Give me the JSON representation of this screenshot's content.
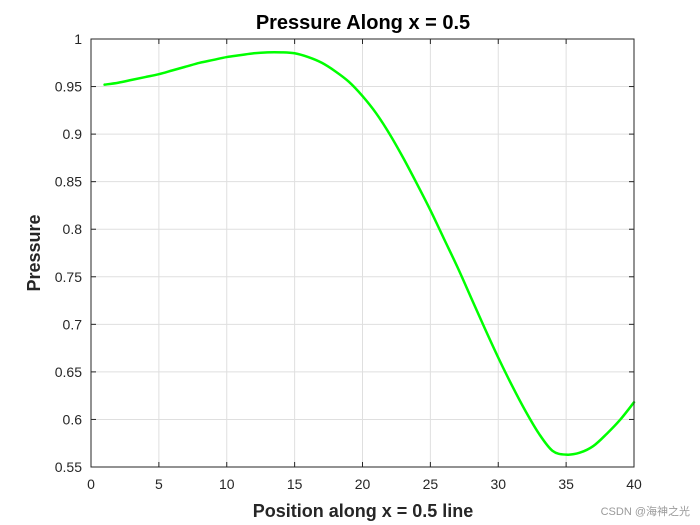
{
  "chart_data": {
    "type": "line",
    "title": "Pressure Along x = 0.5",
    "xlabel": "Position along x = 0.5 line",
    "ylabel": "Pressure",
    "xlim": [
      0,
      40
    ],
    "ylim": [
      0.55,
      1
    ],
    "xticks": [
      0,
      5,
      10,
      15,
      20,
      25,
      30,
      35,
      40
    ],
    "xtick_labels": [
      "0",
      "5",
      "10",
      "15",
      "20",
      "25",
      "30",
      "35",
      "40"
    ],
    "yticks": [
      0.55,
      0.6,
      0.65,
      0.7,
      0.75,
      0.8,
      0.85,
      0.9,
      0.95,
      1
    ],
    "ytick_labels": [
      "0.55",
      "0.6",
      "0.65",
      "0.7",
      "0.75",
      "0.8",
      "0.85",
      "0.9",
      "0.95",
      "1"
    ],
    "grid": true,
    "series": [
      {
        "name": "Pressure",
        "color": "#00ff00",
        "x": [
          1,
          2,
          3,
          4,
          5,
          6,
          7,
          8,
          9,
          10,
          11,
          12,
          13,
          14,
          15,
          16,
          17,
          18,
          19,
          20,
          21,
          22,
          23,
          24,
          25,
          26,
          27,
          28,
          29,
          30,
          31,
          32,
          33,
          34,
          35,
          36,
          37,
          38,
          39,
          40
        ],
        "y": [
          0.952,
          0.954,
          0.957,
          0.96,
          0.963,
          0.967,
          0.971,
          0.975,
          0.978,
          0.981,
          0.983,
          0.985,
          0.986,
          0.986,
          0.985,
          0.981,
          0.975,
          0.966,
          0.955,
          0.94,
          0.922,
          0.9,
          0.875,
          0.848,
          0.82,
          0.79,
          0.76,
          0.728,
          0.696,
          0.665,
          0.636,
          0.609,
          0.585,
          0.567,
          0.563,
          0.565,
          0.572,
          0.585,
          0.6,
          0.618
        ]
      }
    ]
  },
  "watermark": "CSDN @海神之光"
}
